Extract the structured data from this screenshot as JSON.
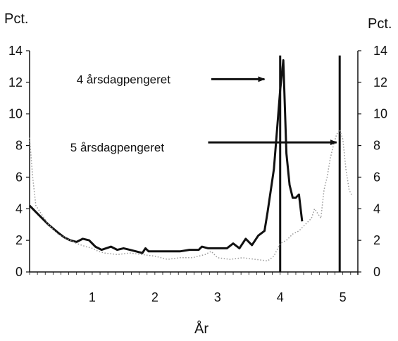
{
  "chart_data": {
    "type": "line",
    "ylabel_left": "Pct.",
    "ylabel_right": "Pct.",
    "xlabel": "År",
    "xlim": [
      0,
      5.15
    ],
    "ylim": [
      0,
      14
    ],
    "x_ticks": [
      1,
      2,
      3,
      4,
      5
    ],
    "y_ticks": [
      0,
      2,
      4,
      6,
      8,
      10,
      12,
      14
    ],
    "grid": false,
    "legend": "none",
    "annotations": [
      {
        "label": "4 årsdagpengeret",
        "text_pos": [
          0.75,
          12.2
        ],
        "arrow_from": [
          2.9,
          12.2
        ],
        "arrow_to": [
          3.75,
          12.2
        ]
      },
      {
        "label": "5 årsdagpengeret",
        "text_pos": [
          0.65,
          7.9
        ],
        "arrow_from": [
          2.85,
          8.2
        ],
        "arrow_to": [
          4.9,
          8.2
        ]
      }
    ],
    "series": [
      {
        "style": "solid-dark",
        "color": "#111111",
        "points": [
          [
            0.0,
            4.2
          ],
          [
            0.15,
            3.6
          ],
          [
            0.3,
            3.0
          ],
          [
            0.45,
            2.5
          ],
          [
            0.55,
            2.2
          ],
          [
            0.65,
            2.0
          ],
          [
            0.75,
            1.9
          ],
          [
            0.85,
            2.1
          ],
          [
            0.95,
            2.0
          ],
          [
            1.05,
            1.6
          ],
          [
            1.15,
            1.4
          ],
          [
            1.3,
            1.6
          ],
          [
            1.4,
            1.4
          ],
          [
            1.5,
            1.5
          ],
          [
            1.6,
            1.4
          ],
          [
            1.7,
            1.3
          ],
          [
            1.8,
            1.2
          ],
          [
            1.85,
            1.5
          ],
          [
            1.9,
            1.3
          ],
          [
            2.0,
            1.3
          ],
          [
            2.2,
            1.3
          ],
          [
            2.4,
            1.3
          ],
          [
            2.55,
            1.4
          ],
          [
            2.7,
            1.4
          ],
          [
            2.75,
            1.6
          ],
          [
            2.85,
            1.5
          ],
          [
            3.0,
            1.5
          ],
          [
            3.15,
            1.5
          ],
          [
            3.25,
            1.8
          ],
          [
            3.35,
            1.5
          ],
          [
            3.45,
            2.1
          ],
          [
            3.55,
            1.7
          ],
          [
            3.65,
            2.3
          ],
          [
            3.75,
            2.6
          ],
          [
            3.8,
            3.8
          ],
          [
            3.9,
            6.5
          ],
          [
            3.95,
            9.0
          ],
          [
            4.0,
            11.5
          ],
          [
            4.05,
            13.4
          ],
          [
            4.1,
            7.5
          ],
          [
            4.15,
            5.5
          ],
          [
            4.2,
            4.7
          ],
          [
            4.25,
            4.7
          ],
          [
            4.3,
            4.9
          ],
          [
            4.35,
            3.2
          ]
        ],
        "verticals": [
          {
            "x": 4.0,
            "y0": 0,
            "y1": 13.7
          },
          {
            "x": 4.95,
            "y0": 0,
            "y1": 13.7
          }
        ]
      },
      {
        "style": "dotted-grey",
        "color": "#9a9a9a",
        "points": [
          [
            0.0,
            8.5
          ],
          [
            0.05,
            6.0
          ],
          [
            0.1,
            4.2
          ],
          [
            0.2,
            3.6
          ],
          [
            0.3,
            3.0
          ],
          [
            0.45,
            2.4
          ],
          [
            0.6,
            2.1
          ],
          [
            0.75,
            1.8
          ],
          [
            0.9,
            1.6
          ],
          [
            1.0,
            1.5
          ],
          [
            1.1,
            1.3
          ],
          [
            1.2,
            1.2
          ],
          [
            1.4,
            1.1
          ],
          [
            1.6,
            1.2
          ],
          [
            1.8,
            1.1
          ],
          [
            2.0,
            1.0
          ],
          [
            2.2,
            0.8
          ],
          [
            2.4,
            0.9
          ],
          [
            2.6,
            0.9
          ],
          [
            2.8,
            1.1
          ],
          [
            2.9,
            1.3
          ],
          [
            3.0,
            0.9
          ],
          [
            3.2,
            0.8
          ],
          [
            3.4,
            0.9
          ],
          [
            3.6,
            0.8
          ],
          [
            3.8,
            0.7
          ],
          [
            3.9,
            1.0
          ],
          [
            4.0,
            1.8
          ],
          [
            4.1,
            2.0
          ],
          [
            4.2,
            2.4
          ],
          [
            4.3,
            2.6
          ],
          [
            4.4,
            3.0
          ],
          [
            4.5,
            3.4
          ],
          [
            4.55,
            4.0
          ],
          [
            4.65,
            3.4
          ],
          [
            4.7,
            5.2
          ],
          [
            4.75,
            6.0
          ],
          [
            4.8,
            7.2
          ],
          [
            4.85,
            8.0
          ],
          [
            4.9,
            8.7
          ],
          [
            4.95,
            9.0
          ],
          [
            5.0,
            8.4
          ],
          [
            5.05,
            6.5
          ],
          [
            5.1,
            5.2
          ],
          [
            5.15,
            4.8
          ]
        ]
      }
    ]
  }
}
